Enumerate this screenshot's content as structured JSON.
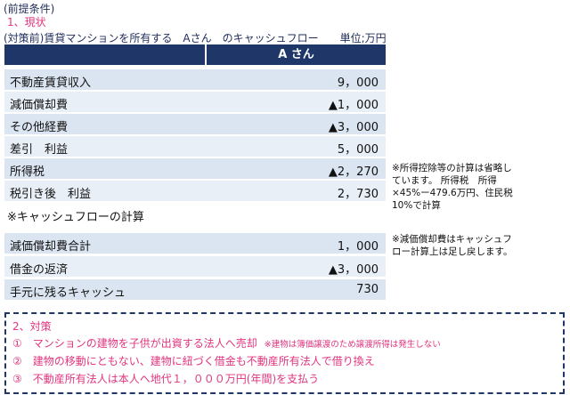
{
  "header": {
    "premise": "(前提条件)",
    "section1": "1、現状",
    "caption": "(対策前)賃貸マンションを所有する　Aさん　のキャッシュフロー　　単位;万円"
  },
  "table": {
    "column": "A さん",
    "rows": [
      [
        "不動産賃貸収入",
        "9，000"
      ],
      [
        "減価償却費",
        "▲1，000"
      ],
      [
        "その他経費",
        "▲3，000"
      ],
      [
        "差引　利益",
        "5，000"
      ],
      [
        "所得税",
        "▲2，270"
      ],
      [
        "税引き後　利益",
        "2，730"
      ]
    ],
    "subheading": "※キャッシュフローの計算",
    "cash_rows": [
      [
        "減価償却費合計",
        "1，000"
      ],
      [
        "借金の返済",
        "▲3，000"
      ],
      [
        "手元に残るキャッシュ",
        "730"
      ]
    ]
  },
  "notes": [
    {
      "lines": [
        "※所得控除等の計算は省略し",
        "ています。 所得税　所得",
        "×45%ー479.6万円、住民税",
        "10%で計算"
      ]
    },
    {
      "lines": [
        "※減価償却費はキャッシュフ",
        "ロー計算上は足し戻します。"
      ]
    }
  ],
  "measures": {
    "title": "2、対策",
    "items": [
      {
        "text": "①　マンションの建物を子供が出資する法人へ売却",
        "note": "※建物は簿価譲渡のため譲渡所得は発生しない"
      },
      {
        "text": "②　建物の移動にともない、建物に紐づく借金も不動産所有法人で借り換え"
      },
      {
        "text": "③　不動産所有法人は本人へ地代１，０００万円(年間)を支払う"
      }
    ]
  }
}
